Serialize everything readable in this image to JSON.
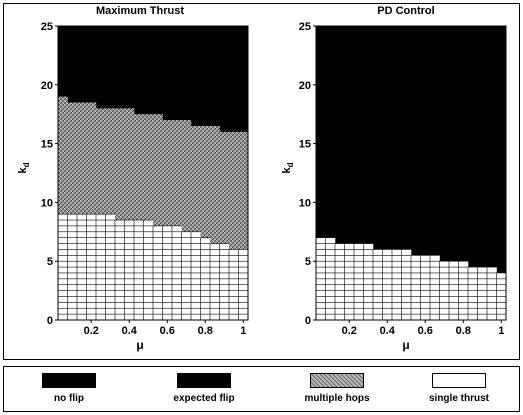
{
  "chart_data": [
    {
      "type": "heatmap",
      "title": "Maximum Thrust",
      "xlabel": "μ",
      "ylabel": "k_d",
      "xlim": [
        0.05,
        1.0
      ],
      "ylim": [
        0,
        25
      ],
      "xticks": [
        "0.2",
        "0.4",
        "0.6",
        "0.8",
        "1"
      ],
      "xtick_values": [
        0.2,
        0.4,
        0.6,
        0.8,
        1.0
      ],
      "yticks": [
        "0",
        "5",
        "10",
        "15",
        "20",
        "25"
      ],
      "ytick_values": [
        0,
        5,
        10,
        15,
        20,
        25
      ],
      "mu_values": [
        0.05,
        0.1,
        0.15,
        0.2,
        0.25,
        0.3,
        0.35,
        0.4,
        0.45,
        0.5,
        0.55,
        0.6,
        0.65,
        0.7,
        0.75,
        0.8,
        0.85,
        0.9,
        0.95,
        1.0
      ],
      "single_thrust_upper_kd": [
        9.0,
        9.0,
        9.0,
        9.0,
        9.0,
        9.0,
        8.5,
        8.5,
        8.5,
        8.5,
        8.0,
        8.0,
        8.0,
        7.5,
        7.5,
        7.0,
        6.5,
        6.5,
        6.0,
        6.0
      ],
      "multiple_hops_upper_kd": [
        19.0,
        18.5,
        18.5,
        18.5,
        18.0,
        18.0,
        18.0,
        18.0,
        17.5,
        17.5,
        17.5,
        17.0,
        17.0,
        17.0,
        16.5,
        16.5,
        16.5,
        16.0,
        16.0,
        16.0
      ],
      "region_above": "no flip"
    },
    {
      "type": "heatmap",
      "title": "PD Control",
      "xlabel": "μ",
      "ylabel": "k_d",
      "xlim": [
        0.05,
        1.0
      ],
      "ylim": [
        0,
        25
      ],
      "xticks": [
        "0.2",
        "0.4",
        "0.6",
        "0.8",
        "1"
      ],
      "xtick_values": [
        0.2,
        0.4,
        0.6,
        0.8,
        1.0
      ],
      "yticks": [
        "0",
        "5",
        "10",
        "15",
        "20",
        "25"
      ],
      "ytick_values": [
        0,
        5,
        10,
        15,
        20,
        25
      ],
      "mu_values": [
        0.05,
        0.1,
        0.15,
        0.2,
        0.25,
        0.3,
        0.35,
        0.4,
        0.45,
        0.5,
        0.55,
        0.6,
        0.65,
        0.7,
        0.75,
        0.8,
        0.85,
        0.9,
        0.95,
        1.0
      ],
      "single_thrust_upper_kd": [
        7.0,
        7.0,
        6.5,
        6.5,
        6.5,
        6.5,
        6.0,
        6.0,
        6.0,
        6.0,
        5.5,
        5.5,
        5.5,
        5.0,
        5.0,
        5.0,
        4.5,
        4.5,
        4.5,
        4.0
      ],
      "multiple_hops_upper_kd": [
        7.0,
        7.0,
        6.5,
        6.5,
        6.5,
        6.5,
        6.0,
        6.0,
        6.0,
        6.0,
        5.5,
        5.5,
        5.5,
        5.0,
        5.0,
        5.0,
        4.5,
        4.5,
        4.5,
        4.0
      ],
      "region_above": "no flip"
    }
  ],
  "legend": [
    {
      "label": "no flip",
      "style": "solid",
      "color": "#000000"
    },
    {
      "label": "expected flip",
      "style": "solid",
      "color": "#000000"
    },
    {
      "label": "multiple hops",
      "style": "hatched",
      "color": "#8a8a8a"
    },
    {
      "label": "single thrust",
      "style": "grid",
      "color": "#ffffff"
    }
  ],
  "colors": {
    "no_flip": "#000000",
    "multiple_hops": "#8a8a8a",
    "single_thrust": "#ffffff",
    "grid_line": "#000000"
  }
}
